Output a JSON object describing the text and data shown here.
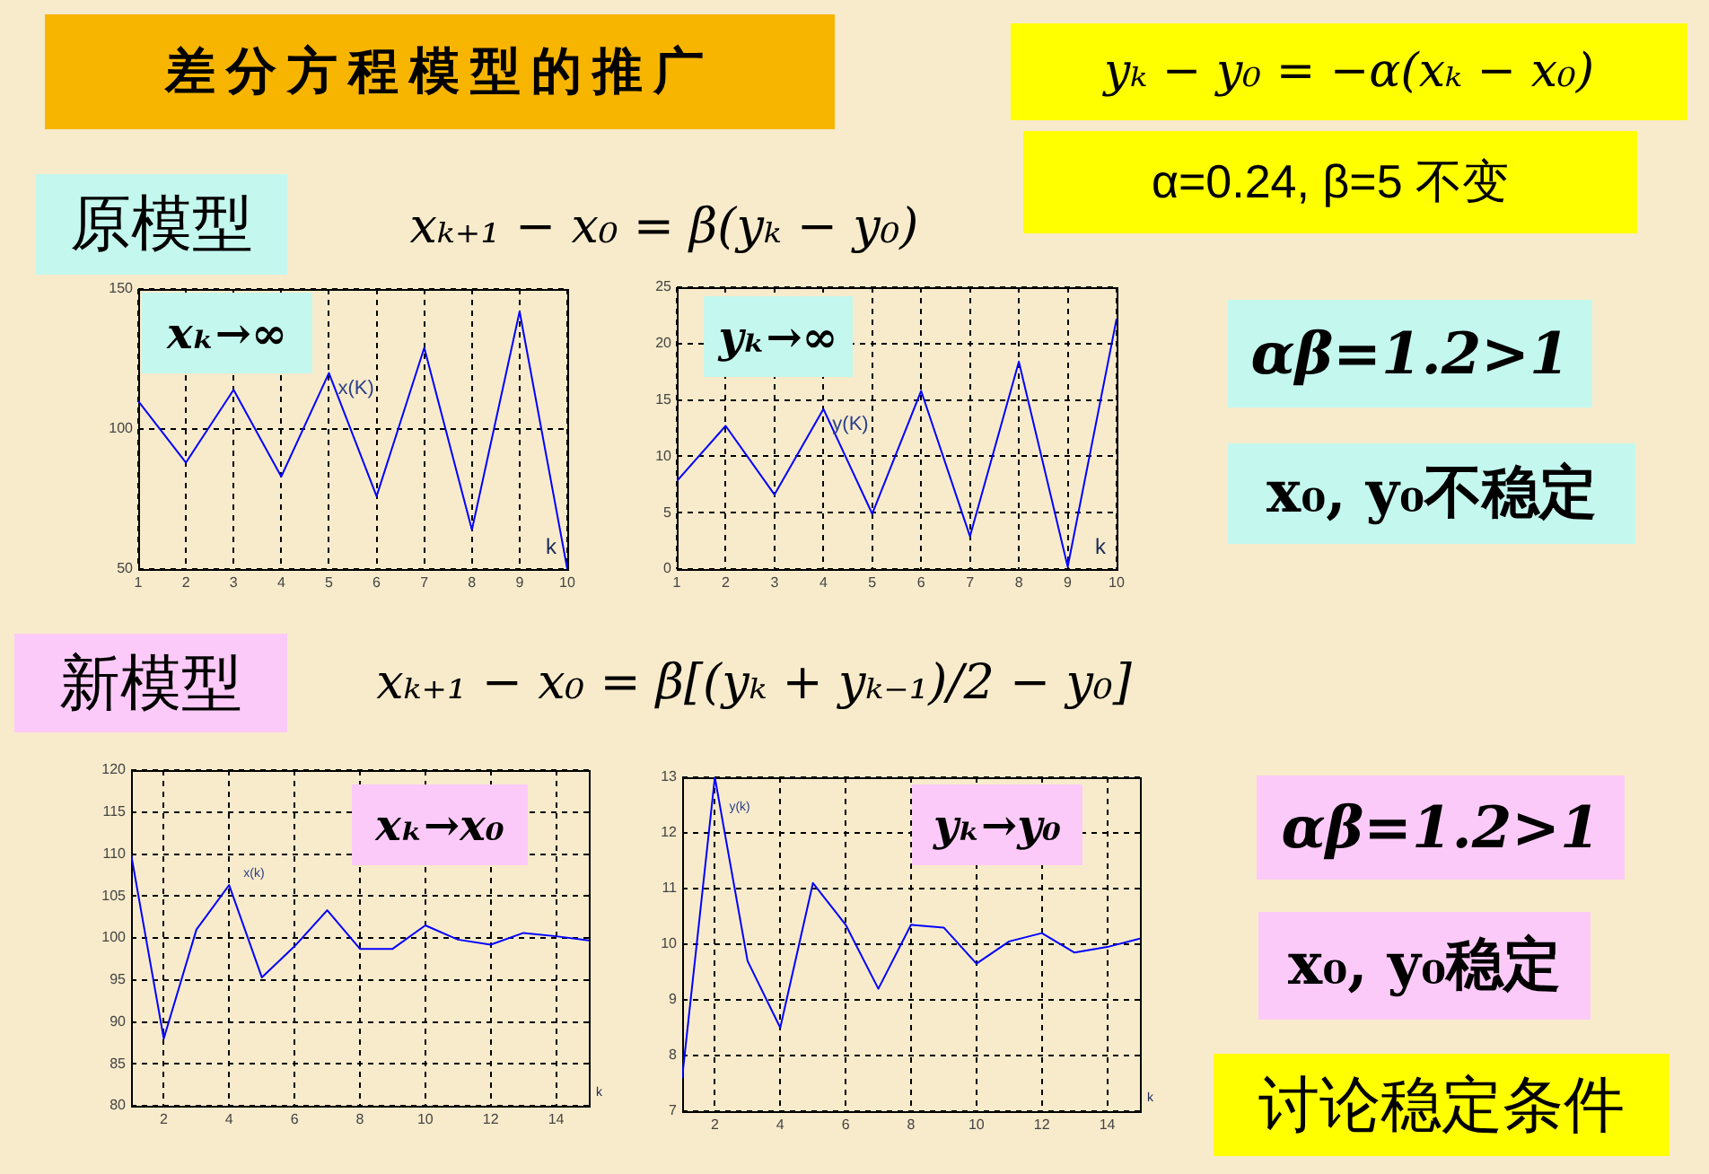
{
  "chart_data": [
    {
      "type": "line",
      "xlabel": "k",
      "x": [
        1,
        2,
        3,
        4,
        5,
        6,
        7,
        8,
        9,
        10
      ],
      "series": [
        {
          "color": "#0000ff",
          "values": [
            110,
            88,
            114,
            83,
            120,
            76,
            129,
            64,
            142,
            50
          ]
        }
      ],
      "xlim": [
        1,
        10
      ],
      "xticks": [
        1,
        2,
        3,
        4,
        5,
        6,
        7,
        8,
        9,
        10
      ],
      "ylim": [
        50,
        150
      ],
      "yticks": [
        50,
        100,
        150
      ],
      "grid": true,
      "marker": "none",
      "annotations": [
        "xₖ→∞",
        {
          "text": "x(K)",
          "x": 5,
          "y": 120
        }
      ]
    },
    {
      "type": "line",
      "xlabel": "k",
      "x": [
        1,
        2,
        3,
        4,
        5,
        6,
        7,
        8,
        9,
        10
      ],
      "series": [
        {
          "color": "#0000ff",
          "values": [
            7.8,
            12.7,
            6.6,
            14.2,
            4.9,
            15.8,
            2.9,
            18.4,
            0.2,
            22.2
          ]
        }
      ],
      "xlim": [
        1,
        10
      ],
      "xticks": [
        1,
        2,
        3,
        4,
        5,
        6,
        7,
        8,
        9,
        10
      ],
      "ylim": [
        0,
        25
      ],
      "yticks": [
        0,
        5,
        10,
        15,
        20,
        25
      ],
      "grid": true,
      "marker": "none",
      "annotations": [
        "yₖ→∞",
        {
          "text": "y(K)",
          "x": 4,
          "y": 14.2
        }
      ]
    },
    {
      "type": "line",
      "xlabel": "k",
      "x": [
        1,
        2,
        3,
        4,
        5,
        6,
        7,
        8,
        9,
        10,
        11,
        12,
        13,
        14,
        15
      ],
      "series": [
        {
          "color": "#0000ff",
          "values": [
            110,
            88,
            101,
            106.3,
            95.3,
            99,
            103.3,
            98.7,
            98.7,
            101.5,
            99.8,
            99.2,
            100.6,
            100.2,
            99.7
          ]
        }
      ],
      "xlim": [
        1,
        15
      ],
      "xticks": [
        2,
        4,
        6,
        8,
        10,
        12,
        14
      ],
      "ylim": [
        80,
        120
      ],
      "yticks": [
        80,
        85,
        90,
        95,
        100,
        105,
        110,
        115,
        120
      ],
      "grid": true,
      "marker": "none",
      "annotations": [
        "xₖ→x₀",
        {
          "text": "x(k)",
          "x": 4,
          "y": 106.3
        }
      ]
    },
    {
      "type": "line",
      "xlabel": "k",
      "x": [
        1,
        2,
        3,
        4,
        5,
        6,
        7,
        8,
        9,
        10,
        11,
        12,
        13,
        14,
        15
      ],
      "series": [
        {
          "color": "#0000ff",
          "values": [
            7.6,
            13,
            9.7,
            8.5,
            11.1,
            10.35,
            9.2,
            10.35,
            10.3,
            9.65,
            10.05,
            10.2,
            9.85,
            9.95,
            10.1
          ]
        }
      ],
      "xlim": [
        1,
        15
      ],
      "xticks": [
        2,
        4,
        6,
        8,
        10,
        12,
        14
      ],
      "ylim": [
        7,
        13
      ],
      "yticks": [
        7,
        8,
        9,
        10,
        11,
        12,
        13
      ],
      "grid": true,
      "marker": "none",
      "annotations": [
        "yₖ→y₀",
        {
          "text": "y(k)",
          "x": 2,
          "y": 13
        }
      ]
    },
    {
      "type": "other",
      "annotations": [
        "差分方程模型的推广",
        "yₖ − y₀ = −α(xₖ − x₀)",
        "α=0.24, β=5  不变",
        "原模型",
        "xₖ₊₁ − x₀ = β(yₖ − y₀)",
        "αβ=1.2>1",
        "x₀, y₀不稳定",
        "新模型",
        "xₖ₊₁ − x₀ = β[(yₖ + yₖ₋₁)/2 − y₀]",
        "αβ=1.2>1",
        "x₀, y₀稳定",
        "讨论稳定条件"
      ]
    }
  ]
}
